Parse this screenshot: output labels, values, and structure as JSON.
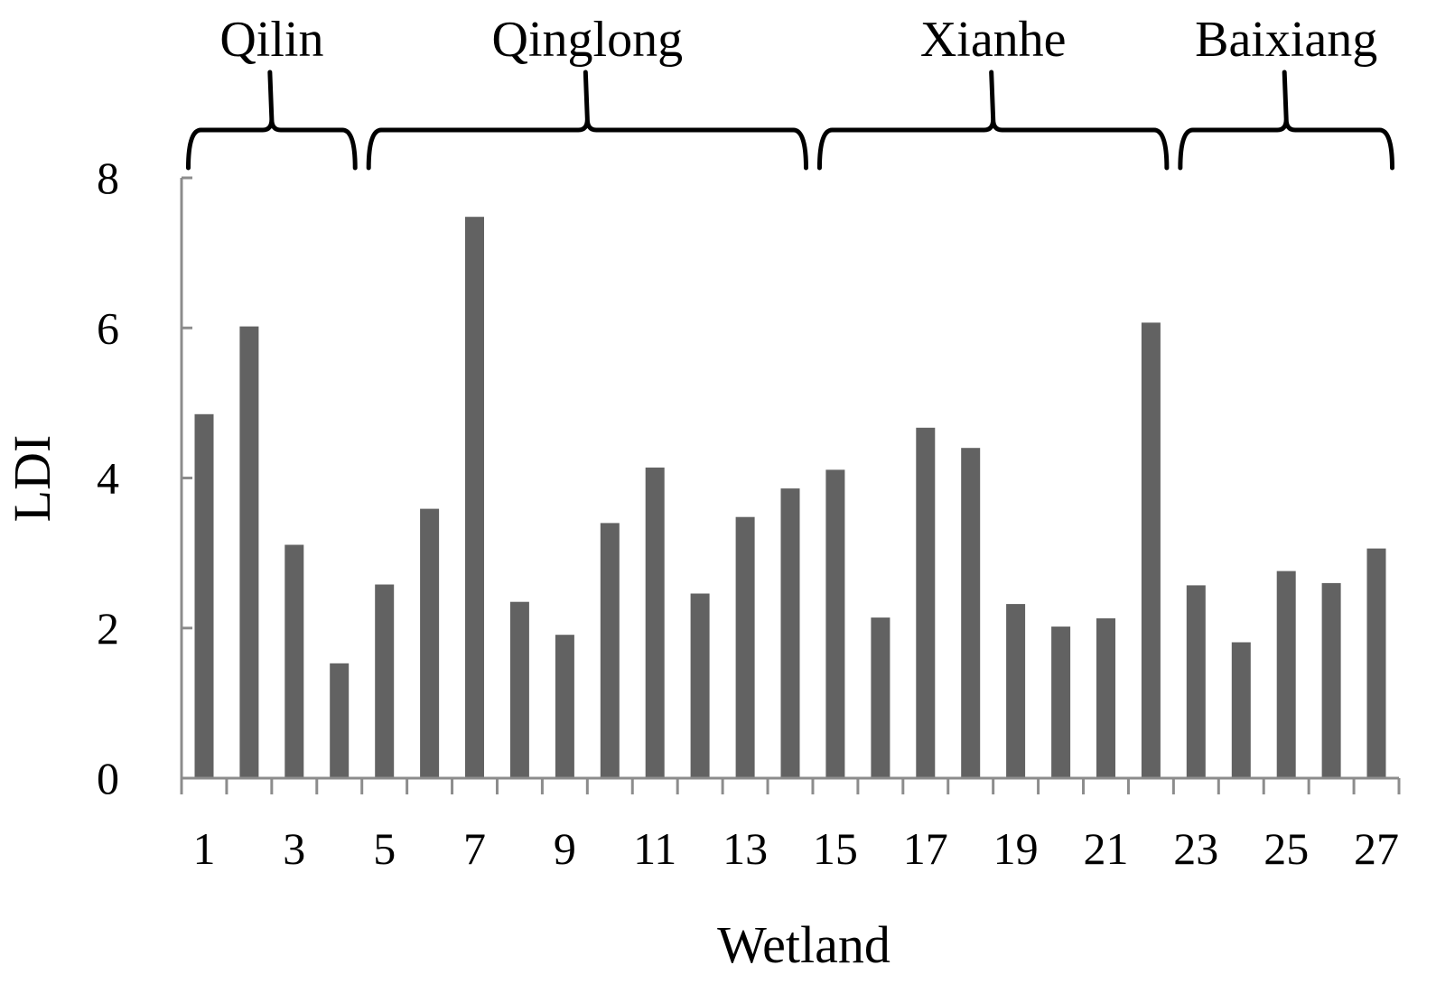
{
  "chart_data": {
    "type": "bar",
    "xlabel": "Wetland",
    "ylabel": "LDI",
    "ylim": [
      0,
      8
    ],
    "yticks": [
      0,
      2,
      4,
      6,
      8
    ],
    "categories": [
      1,
      2,
      3,
      4,
      5,
      6,
      7,
      8,
      9,
      10,
      11,
      12,
      13,
      14,
      15,
      16,
      17,
      18,
      19,
      20,
      21,
      22,
      23,
      24,
      25,
      26,
      27
    ],
    "xtick_labels": [
      "1",
      "3",
      "5",
      "7",
      "9",
      "11",
      "13",
      "15",
      "17",
      "19",
      "21",
      "23",
      "25",
      "27"
    ],
    "values": [
      4.85,
      6.02,
      3.11,
      1.53,
      2.58,
      3.59,
      7.48,
      2.35,
      1.91,
      3.4,
      4.14,
      2.46,
      3.48,
      3.86,
      4.11,
      2.14,
      4.67,
      4.4,
      2.32,
      2.02,
      2.13,
      6.07,
      2.57,
      1.81,
      2.76,
      2.6,
      3.06
    ],
    "grid": false,
    "legend": "none",
    "bar_color": "#626262",
    "groups": [
      {
        "label": "Qilin",
        "start": 1,
        "end": 4
      },
      {
        "label": "Qinglong",
        "start": 5,
        "end": 14
      },
      {
        "label": "Xianhe",
        "start": 15,
        "end": 22
      },
      {
        "label": "Baixiang",
        "start": 23,
        "end": 27
      }
    ]
  }
}
